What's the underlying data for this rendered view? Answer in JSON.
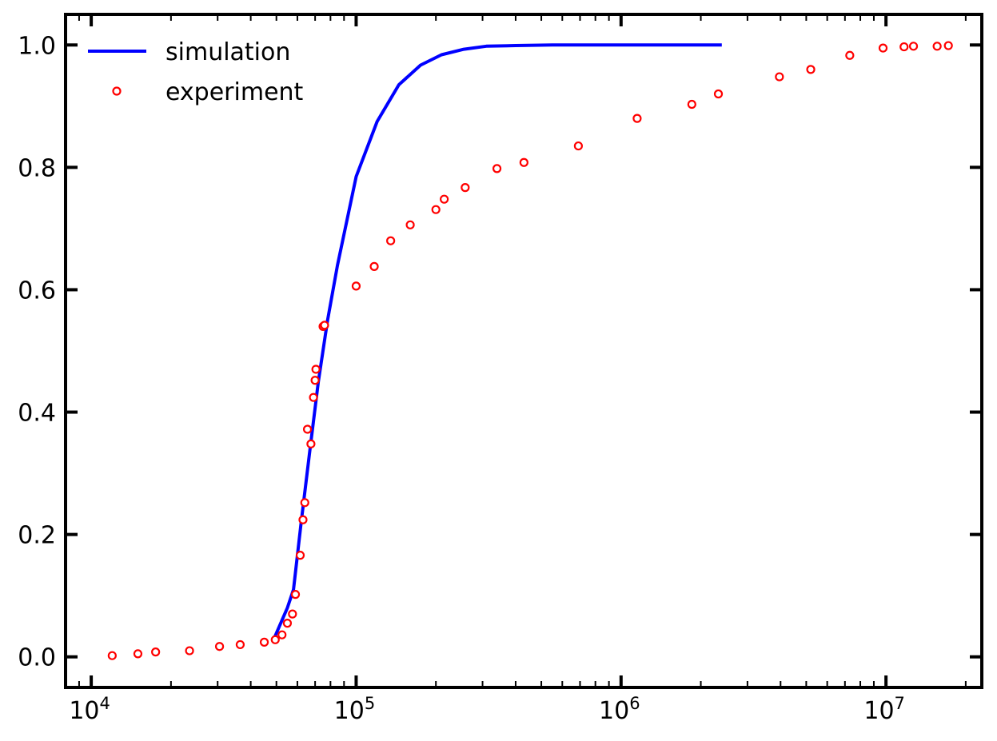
{
  "chart_data": {
    "type": "line",
    "xscale": "log",
    "xlim": [
      8000,
      23000000
    ],
    "ylim": [
      -0.05,
      1.05
    ],
    "grid": false,
    "legend_position": "top-left",
    "x_ticks": [
      {
        "value": 10000,
        "base": "10",
        "exp": "4"
      },
      {
        "value": 100000,
        "base": "10",
        "exp": "5"
      },
      {
        "value": 1000000,
        "base": "10",
        "exp": "6"
      },
      {
        "value": 10000000,
        "base": "10",
        "exp": "7"
      }
    ],
    "y_ticks": [
      {
        "value": 0.0,
        "label": "0.0"
      },
      {
        "value": 0.2,
        "label": "0.2"
      },
      {
        "value": 0.4,
        "label": "0.4"
      },
      {
        "value": 0.6,
        "label": "0.6"
      },
      {
        "value": 0.8,
        "label": "0.8"
      },
      {
        "value": 1.0,
        "label": "1.0"
      }
    ],
    "series": [
      {
        "name": "simulation",
        "style": "line",
        "color": "#0000ff",
        "x": [
          49000,
          55000,
          58000,
          62000,
          67000,
          72000,
          78000,
          85000,
          100000,
          120000,
          145000,
          175000,
          210000,
          255000,
          310000,
          400000,
          550000,
          800000,
          1200000,
          1700000,
          2400000
        ],
        "y": [
          0.03,
          0.08,
          0.11,
          0.22,
          0.34,
          0.45,
          0.55,
          0.64,
          0.785,
          0.875,
          0.935,
          0.967,
          0.984,
          0.993,
          0.998,
          0.999,
          1.0,
          1.0,
          1.0,
          1.0,
          1.0
        ]
      },
      {
        "name": "experiment",
        "style": "markers",
        "color": "#ff0000",
        "x": [
          12000,
          15000,
          17500,
          23500,
          30500,
          36500,
          45000,
          49500,
          52500,
          55000,
          57500,
          59000,
          61500,
          63000,
          64000,
          65500,
          67500,
          69000,
          70000,
          70500,
          75000,
          76000,
          100000,
          117000,
          135000,
          160000,
          200000,
          215000,
          258000,
          340000,
          430000,
          690000,
          1150000,
          1850000,
          2330000,
          3960000,
          5200000,
          7300000,
          9750000,
          11700000,
          12700000,
          15600000,
          17200000
        ],
        "y": [
          0.002,
          0.005,
          0.008,
          0.01,
          0.017,
          0.02,
          0.024,
          0.028,
          0.036,
          0.055,
          0.07,
          0.102,
          0.166,
          0.224,
          0.252,
          0.372,
          0.348,
          0.424,
          0.452,
          0.47,
          0.54,
          0.542,
          0.606,
          0.638,
          0.68,
          0.706,
          0.731,
          0.748,
          0.767,
          0.798,
          0.808,
          0.835,
          0.88,
          0.903,
          0.92,
          0.948,
          0.96,
          0.983,
          0.995,
          0.997,
          0.998,
          0.998,
          0.999
        ]
      }
    ]
  }
}
